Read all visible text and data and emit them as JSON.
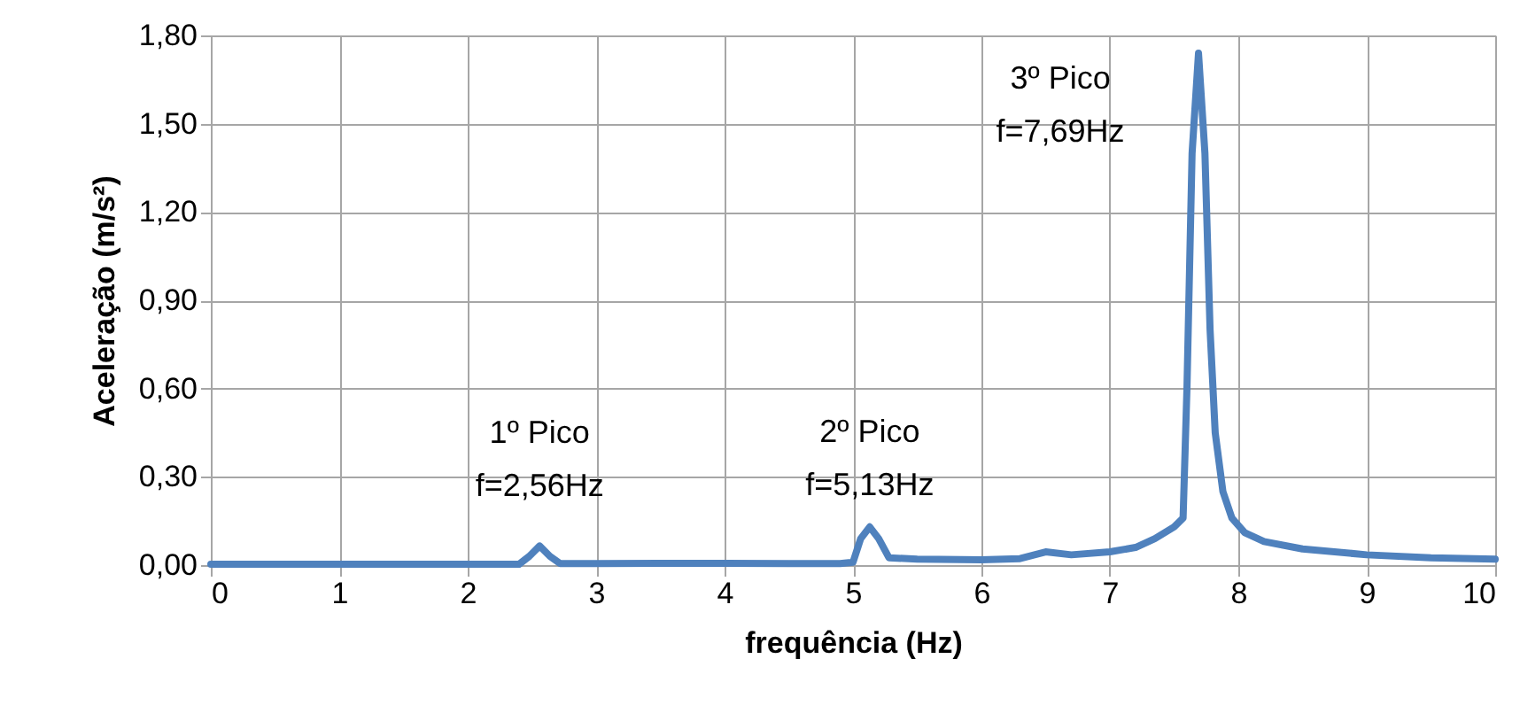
{
  "chart_data": {
    "type": "line",
    "xlabel": "frequência (Hz)",
    "ylabel": "Aceleração (m/s²)",
    "xlim": [
      0,
      10
    ],
    "xticks": [
      0,
      1,
      2,
      3,
      4,
      5,
      6,
      7,
      8,
      9,
      10
    ],
    "ylim": [
      0,
      1.8
    ],
    "yticks": [
      {
        "value": 0,
        "label": "0,00"
      },
      {
        "value": 0.3,
        "label": "0,30"
      },
      {
        "value": 0.6,
        "label": "0,60"
      },
      {
        "value": 0.9,
        "label": "0,90"
      },
      {
        "value": 1.2,
        "label": "1,20"
      },
      {
        "value": 1.5,
        "label": "1,50"
      },
      {
        "value": 1.8,
        "label": "1,80"
      }
    ],
    "grid": true,
    "marker": "none",
    "line_style": "solid",
    "series": [
      {
        "color": "#4f81bd",
        "x": [
          0,
          0.5,
          1,
          1.5,
          2,
          2.4,
          2.48,
          2.56,
          2.64,
          2.72,
          3,
          3.5,
          4,
          4.5,
          4.9,
          5.0,
          5.06,
          5.13,
          5.2,
          5.28,
          5.5,
          6,
          6.3,
          6.5,
          6.7,
          7,
          7.2,
          7.35,
          7.5,
          7.57,
          7.6,
          7.64,
          7.69,
          7.74,
          7.78,
          7.82,
          7.88,
          7.95,
          8.05,
          8.2,
          8.5,
          9,
          9.5,
          10
        ],
        "values": [
          0.003,
          0.003,
          0.003,
          0.003,
          0.003,
          0.003,
          0.03,
          0.065,
          0.03,
          0.005,
          0.005,
          0.006,
          0.006,
          0.005,
          0.005,
          0.01,
          0.09,
          0.13,
          0.09,
          0.025,
          0.02,
          0.018,
          0.022,
          0.045,
          0.035,
          0.045,
          0.06,
          0.09,
          0.13,
          0.16,
          0.6,
          1.4,
          1.74,
          1.4,
          0.8,
          0.45,
          0.25,
          0.16,
          0.11,
          0.08,
          0.055,
          0.035,
          0.025,
          0.02
        ]
      }
    ],
    "annotations": [
      {
        "text": "1º Pico\nf=2,56Hz",
        "x": 2.56,
        "y": 0.065
      },
      {
        "text": "2º Pico\nf=5,13Hz",
        "x": 5.13,
        "y": 0.13
      },
      {
        "text": "3º Pico\nf=7,69Hz",
        "x": 7.69,
        "y": 1.74
      }
    ]
  }
}
